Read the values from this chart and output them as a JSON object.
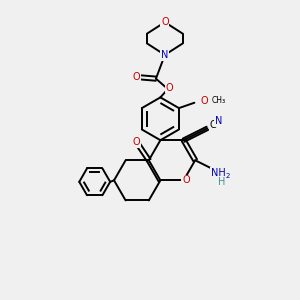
{
  "bg_color": "#f0f0f0",
  "atom_colors": {
    "C": "#000000",
    "N": "#0000bb",
    "O": "#cc0000",
    "H": "#4a9090"
  },
  "bond_color": "#000000",
  "bond_width": 1.4,
  "figsize": [
    3.0,
    3.0
  ],
  "dpi": 100,
  "xlim": [
    0,
    10
  ],
  "ylim": [
    0,
    10
  ]
}
